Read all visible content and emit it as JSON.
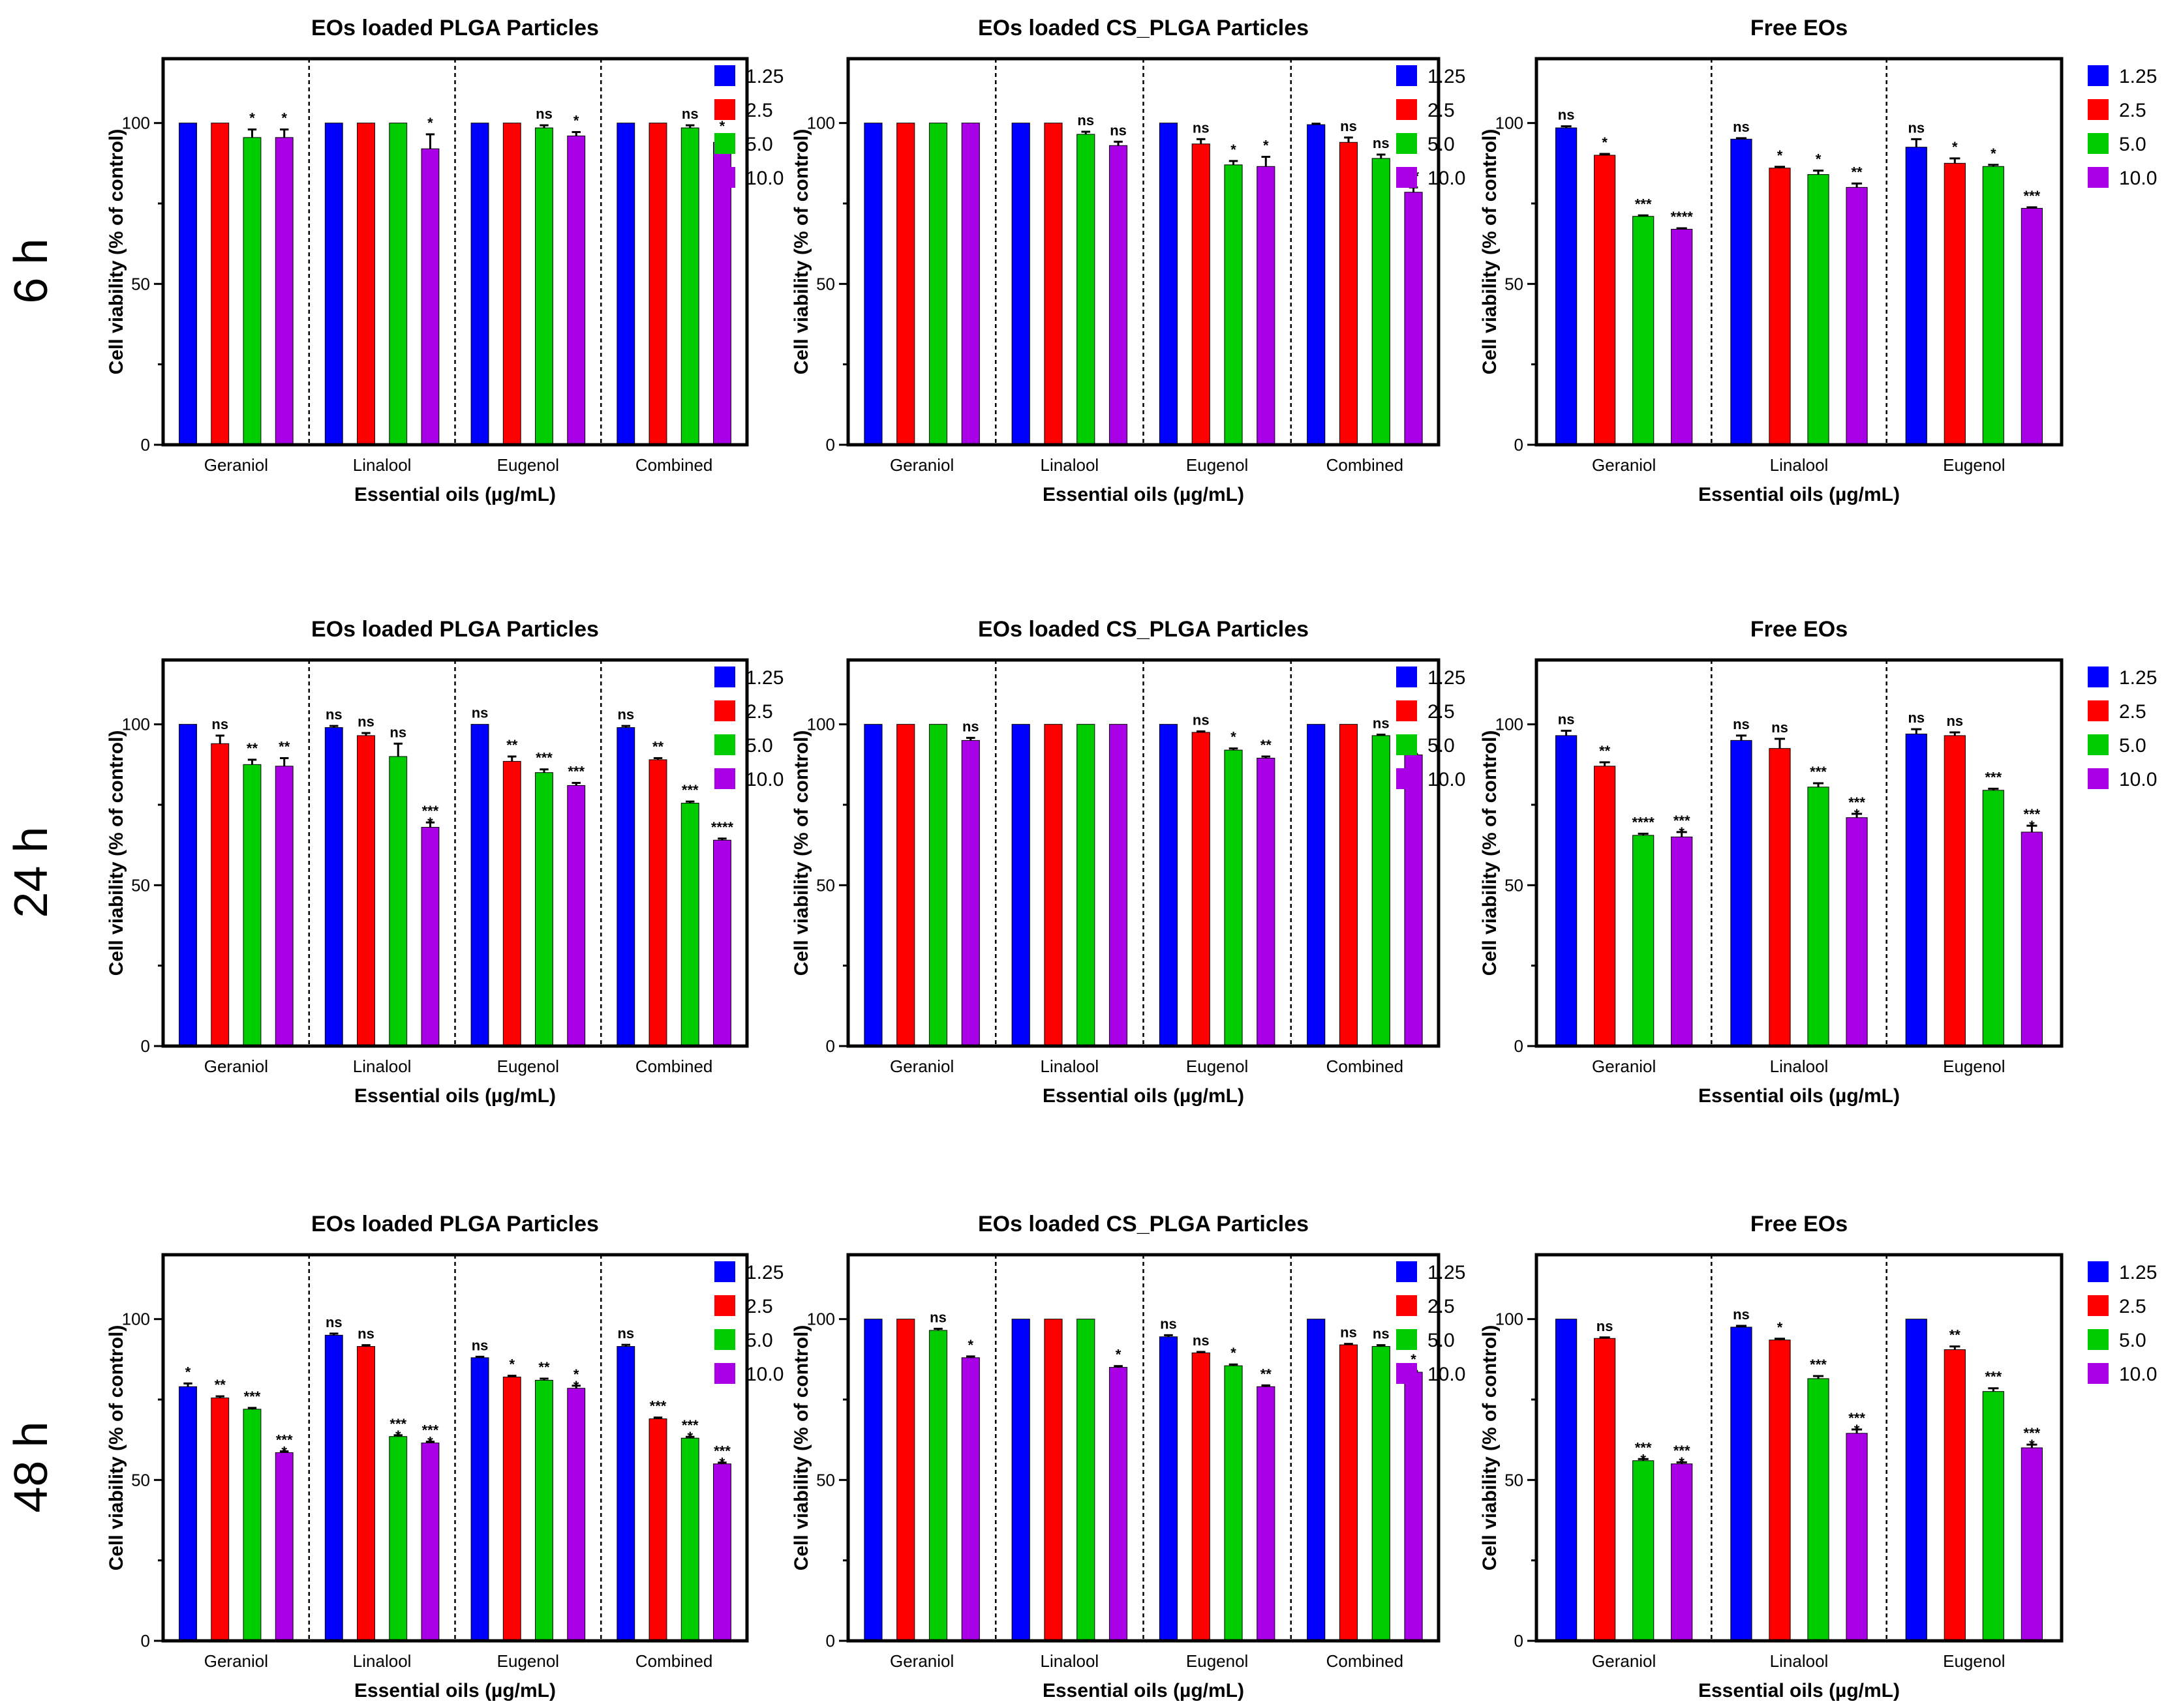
{
  "rows": [
    "6 h",
    "24 h",
    "48 h"
  ],
  "colors": {
    "1.25": "#0000ff",
    "2.5": "#ff0000",
    "5.0": "#00cc00",
    "10.0": "#aa00e8"
  },
  "legend": [
    "1.25",
    "2.5",
    "5.0",
    "10.0"
  ],
  "chart_data": [
    {
      "type": "bar",
      "row": "6 h",
      "title": "EOs loaded PLGA Particles",
      "xlabel": "Essential oils (µg/mL)",
      "ylabel": "Cell viability (% of control)",
      "ylim": [
        0,
        120
      ],
      "yticks": [
        "0",
        "50",
        "100"
      ],
      "categories": [
        "Geraniol",
        "Linalool",
        "Eugenol",
        "Combined"
      ],
      "series": [
        {
          "name": "1.25",
          "values": [
            100,
            100,
            100,
            100
          ],
          "err": [
            0,
            0,
            0,
            0
          ]
        },
        {
          "name": "2.5",
          "values": [
            100,
            100,
            100,
            100
          ],
          "err": [
            0,
            0,
            0,
            0
          ]
        },
        {
          "name": "5.0",
          "values": [
            95.5,
            100,
            98.5,
            98.5
          ],
          "err": [
            2.5,
            0,
            0.8,
            0.8
          ]
        },
        {
          "name": "10.0",
          "values": [
            95.5,
            92,
            96,
            94
          ],
          "err": [
            2.5,
            4.5,
            1.2,
            1.5
          ]
        }
      ],
      "sig": [
        [
          "",
          "",
          "*",
          "*"
        ],
        [
          "",
          "",
          "",
          "*"
        ],
        [
          "",
          "",
          "ns",
          "*"
        ],
        [
          "",
          "",
          "ns",
          "*"
        ]
      ]
    },
    {
      "type": "bar",
      "row": "6 h",
      "title": "EOs loaded CS_PLGA Particles",
      "xlabel": "Essential oils (µg/mL)",
      "ylabel": "Cell viability (% of control)",
      "ylim": [
        0,
        120
      ],
      "yticks": [
        "0",
        "50",
        "100"
      ],
      "categories": [
        "Geraniol",
        "Linalool",
        "Eugenol",
        "Combined"
      ],
      "series": [
        {
          "name": "1.25",
          "values": [
            100,
            100,
            100,
            99.5
          ],
          "err": [
            0,
            0,
            0,
            0.3
          ]
        },
        {
          "name": "2.5",
          "values": [
            100,
            100,
            93.5,
            94
          ],
          "err": [
            0,
            0,
            1.5,
            1.5
          ]
        },
        {
          "name": "5.0",
          "values": [
            100,
            96.5,
            87,
            89
          ],
          "err": [
            0,
            0.8,
            1.2,
            1.2
          ]
        },
        {
          "name": "10.0",
          "values": [
            100,
            93,
            86.5,
            78.5
          ],
          "err": [
            0,
            1.2,
            3,
            1.5
          ]
        }
      ],
      "sig": [
        [
          "",
          "",
          "",
          ""
        ],
        [
          "",
          "",
          "ns",
          "ns"
        ],
        [
          "",
          "ns",
          "*",
          "*"
        ],
        [
          "",
          "ns",
          "ns",
          "**"
        ]
      ]
    },
    {
      "type": "bar",
      "row": "6 h",
      "title": "Free EOs",
      "xlabel": "Essential oils (µg/mL)",
      "ylabel": "Cell viability (% of control)",
      "ylim": [
        0,
        120
      ],
      "yticks": [
        "0",
        "50",
        "100"
      ],
      "categories": [
        "Geraniol",
        "Linalool",
        "Eugenol"
      ],
      "series": [
        {
          "name": "1.25",
          "values": [
            98.5,
            95,
            92.5
          ],
          "err": [
            0.5,
            0.3,
            2.5
          ]
        },
        {
          "name": "2.5",
          "values": [
            90,
            86,
            87.5
          ],
          "err": [
            0.4,
            0.4,
            1.5
          ]
        },
        {
          "name": "5.0",
          "values": [
            71,
            84,
            86.5
          ],
          "err": [
            0.3,
            1.2,
            0.5
          ]
        },
        {
          "name": "10.0",
          "values": [
            67,
            80,
            73.5
          ],
          "err": [
            0.3,
            1.2,
            0.3
          ]
        }
      ],
      "sig": [
        [
          "ns",
          "*",
          "***",
          "****"
        ],
        [
          "ns",
          "*",
          "*",
          "**"
        ],
        [
          "ns",
          "*",
          "*",
          "***"
        ]
      ]
    },
    {
      "type": "bar",
      "row": "24 h",
      "title": "EOs loaded PLGA Particles",
      "xlabel": "Essential oils (µg/mL)",
      "ylabel": "Cell viability (% of control)",
      "ylim": [
        0,
        120
      ],
      "yticks": [
        "0",
        "50",
        "100"
      ],
      "categories": [
        "Geraniol",
        "Linalool",
        "Eugenol",
        "Combined"
      ],
      "series": [
        {
          "name": "1.25",
          "values": [
            100,
            99,
            100,
            99
          ],
          "err": [
            0,
            0.5,
            0,
            0.5
          ]
        },
        {
          "name": "2.5",
          "values": [
            94,
            96.5,
            88.5,
            89
          ],
          "err": [
            2.5,
            0.8,
            1.5,
            0.5
          ]
        },
        {
          "name": "5.0",
          "values": [
            87.5,
            90,
            85,
            75.5
          ],
          "err": [
            1.5,
            4,
            1,
            0.5
          ]
        },
        {
          "name": "10.0",
          "values": [
            87,
            68,
            81,
            64
          ],
          "err": [
            2.5,
            1.5,
            0.8,
            0.5
          ]
        }
      ],
      "sig": [
        [
          "",
          "ns",
          "**",
          "**"
        ],
        [
          "ns",
          "ns",
          "ns",
          "***\n*"
        ],
        [
          "ns",
          "**",
          "***",
          "***"
        ],
        [
          "ns",
          "**",
          "***",
          "****"
        ]
      ]
    },
    {
      "type": "bar",
      "row": "24 h",
      "title": "EOs loaded CS_PLGA Particles",
      "xlabel": "Essential oils (µg/mL)",
      "ylabel": "Cell viability (% of control)",
      "ylim": [
        0,
        120
      ],
      "yticks": [
        "0",
        "50",
        "100"
      ],
      "categories": [
        "Geraniol",
        "Linalool",
        "Eugenol",
        "Combined"
      ],
      "series": [
        {
          "name": "1.25",
          "values": [
            100,
            100,
            100,
            100
          ],
          "err": [
            0,
            0,
            0,
            0
          ]
        },
        {
          "name": "2.5",
          "values": [
            100,
            100,
            97.5,
            100
          ],
          "err": [
            0,
            0,
            0.3,
            0
          ]
        },
        {
          "name": "5.0",
          "values": [
            100,
            100,
            92,
            96.5
          ],
          "err": [
            0,
            0,
            0.5,
            0.3
          ]
        },
        {
          "name": "10.0",
          "values": [
            95,
            100,
            89.5,
            90.5
          ],
          "err": [
            0.8,
            0,
            0.5,
            0.3
          ]
        }
      ],
      "sig": [
        [
          "",
          "",
          "",
          "ns"
        ],
        [
          "",
          "",
          "",
          ""
        ],
        [
          "",
          "ns",
          "*",
          "**"
        ],
        [
          "",
          "",
          "ns",
          "*"
        ]
      ]
    },
    {
      "type": "bar",
      "row": "24 h",
      "title": "Free EOs",
      "xlabel": "Essential oils (µg/mL)",
      "ylabel": "Cell viability (% of control)",
      "ylim": [
        0,
        120
      ],
      "yticks": [
        "0",
        "50",
        "100"
      ],
      "categories": [
        "Geraniol",
        "Linalool",
        "Eugenol"
      ],
      "series": [
        {
          "name": "1.25",
          "values": [
            96.5,
            95,
            97
          ],
          "err": [
            1.5,
            1.5,
            1.5
          ]
        },
        {
          "name": "2.5",
          "values": [
            87,
            92.5,
            96.5
          ],
          "err": [
            1.2,
            3,
            1
          ]
        },
        {
          "name": "5.0",
          "values": [
            65.5,
            80.5,
            79.5
          ],
          "err": [
            0.5,
            1.2,
            0.5
          ]
        },
        {
          "name": "10.0",
          "values": [
            65,
            71,
            66.5
          ],
          "err": [
            1.5,
            1.2,
            2
          ]
        }
      ],
      "sig": [
        [
          "ns",
          "**",
          "****",
          "***\n*"
        ],
        [
          "ns",
          "ns",
          "***",
          "***\n*"
        ],
        [
          "ns",
          "ns",
          "***",
          "***\n*"
        ]
      ]
    },
    {
      "type": "bar",
      "row": "48 h",
      "title": "EOs loaded PLGA Particles",
      "xlabel": "Essential oils (µg/mL)",
      "ylabel": "Cell viability (% of control)",
      "ylim": [
        0,
        120
      ],
      "yticks": [
        "0",
        "50",
        "100"
      ],
      "categories": [
        "Geraniol",
        "Linalool",
        "Eugenol",
        "Combined"
      ],
      "series": [
        {
          "name": "1.25",
          "values": [
            79,
            95,
            88,
            91.5
          ],
          "err": [
            1,
            0.5,
            0.3,
            0.5
          ]
        },
        {
          "name": "2.5",
          "values": [
            75.5,
            91.5,
            82,
            69
          ],
          "err": [
            0.5,
            0.4,
            0.4,
            0.4
          ]
        },
        {
          "name": "5.0",
          "values": [
            72,
            63.5,
            81,
            63
          ],
          "err": [
            0.4,
            0.4,
            0.5,
            0.4
          ]
        },
        {
          "name": "10.0",
          "values": [
            58.5,
            61.5,
            78.5,
            55
          ],
          "err": [
            0.4,
            0.4,
            0.8,
            0.4
          ]
        }
      ],
      "sig": [
        [
          "*",
          "**",
          "***",
          "***\n*"
        ],
        [
          "ns",
          "ns",
          "***\n*",
          "***\n*"
        ],
        [
          "ns",
          "*",
          "**",
          "*\n*"
        ],
        [
          "ns",
          "***",
          "***\n*",
          "***\n*"
        ]
      ]
    },
    {
      "type": "bar",
      "row": "48 h",
      "title": "EOs loaded CS_PLGA Particles",
      "xlabel": "Essential oils (µg/mL)",
      "ylabel": "Cell viability (% of control)",
      "ylim": [
        0,
        120
      ],
      "yticks": [
        "0",
        "50",
        "100"
      ],
      "categories": [
        "Geraniol",
        "Linalool",
        "Eugenol",
        "Combined"
      ],
      "series": [
        {
          "name": "1.25",
          "values": [
            100,
            100,
            94.5,
            100
          ],
          "err": [
            0,
            0,
            0.5,
            0
          ]
        },
        {
          "name": "2.5",
          "values": [
            100,
            100,
            89.5,
            92
          ],
          "err": [
            0,
            0,
            0.3,
            0.3
          ]
        },
        {
          "name": "5.0",
          "values": [
            96.5,
            100,
            85.5,
            91.5
          ],
          "err": [
            0.5,
            0,
            0.4,
            0.4
          ]
        },
        {
          "name": "10.0",
          "values": [
            88,
            85,
            79,
            83.5
          ],
          "err": [
            0.4,
            0.4,
            0.4,
            0.4
          ]
        }
      ],
      "sig": [
        [
          "",
          "",
          "ns",
          "*"
        ],
        [
          "",
          "",
          "",
          "*"
        ],
        [
          "ns",
          "ns",
          "*",
          "**"
        ],
        [
          "",
          "ns",
          "ns",
          "*"
        ]
      ]
    },
    {
      "type": "bar",
      "row": "48 h",
      "title": "Free EOs",
      "xlabel": "Essential oils (µg/mL)",
      "ylabel": "Cell viability (% of control)",
      "ylim": [
        0,
        120
      ],
      "yticks": [
        "0",
        "50",
        "100"
      ],
      "categories": [
        "Geraniol",
        "Linalool",
        "Eugenol"
      ],
      "series": [
        {
          "name": "1.25",
          "values": [
            100,
            97.5,
            100
          ],
          "err": [
            0,
            0.4,
            0
          ]
        },
        {
          "name": "2.5",
          "values": [
            94,
            93.5,
            90.5
          ],
          "err": [
            0.3,
            0.4,
            1
          ]
        },
        {
          "name": "5.0",
          "values": [
            56,
            81.5,
            77.5
          ],
          "err": [
            0.5,
            0.8,
            1
          ]
        },
        {
          "name": "10.0",
          "values": [
            55,
            64.5,
            60
          ],
          "err": [
            0.5,
            1.2,
            1
          ]
        }
      ],
      "sig": [
        [
          "",
          "ns",
          "***\n*",
          "***\n*"
        ],
        [
          "ns",
          "*",
          "***",
          "***\n*"
        ],
        [
          "",
          "**",
          "***",
          "***\n*"
        ]
      ]
    }
  ]
}
